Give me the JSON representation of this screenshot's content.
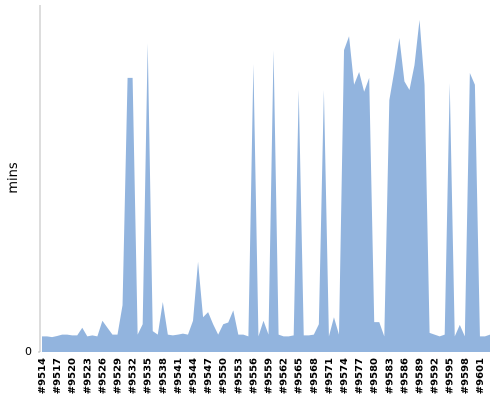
{
  "chart_data": {
    "type": "area",
    "ylabel": "mins",
    "color": "#92b4de",
    "ylim": [
      0,
      100
    ],
    "yticks": [
      0
    ],
    "categories": [
      "#9514",
      null,
      null,
      "#9517",
      null,
      null,
      "#9520",
      null,
      null,
      "#9523",
      null,
      null,
      "#9526",
      null,
      null,
      "#9529",
      null,
      null,
      "#9532",
      null,
      null,
      "#9535",
      null,
      null,
      "#9538",
      null,
      null,
      "#9541",
      null,
      null,
      "#9544",
      null,
      null,
      "#9547",
      null,
      null,
      "#9550",
      null,
      null,
      "#9553",
      null,
      null,
      "#9556",
      null,
      null,
      "#9559",
      null,
      null,
      "#9562",
      null,
      null,
      "#9565",
      null,
      null,
      "#9568",
      null,
      null,
      "#9571",
      null,
      null,
      "#9574",
      null,
      null,
      "#9577",
      null,
      null,
      "#9580",
      null,
      null,
      "#9583",
      null,
      null,
      "#9586",
      null,
      null,
      "#9589",
      null,
      null,
      "#9592",
      null,
      null,
      "#9595",
      null,
      null,
      "#9598",
      null,
      null,
      "#9601",
      null,
      null
    ],
    "values": [
      4.5,
      4.5,
      4.3,
      4.6,
      5,
      5,
      4.8,
      4.8,
      7,
      4.5,
      4.8,
      4.5,
      9,
      7,
      5,
      5,
      13.5,
      79,
      79,
      5,
      8,
      89,
      6,
      5,
      14.4,
      5,
      4.8,
      5,
      5.3,
      5,
      9,
      26,
      10,
      11.5,
      8,
      5,
      8,
      8.5,
      12,
      5,
      5,
      4.5,
      83,
      4.5,
      9,
      5,
      87,
      5,
      4.5,
      4.5,
      4.8,
      75.5,
      4.8,
      4.8,
      5,
      8,
      75.5,
      4.5,
      10,
      5,
      87,
      91,
      77,
      80.7,
      75,
      79,
      8.6,
      8.6,
      4.5,
      72.6,
      81,
      90.5,
      78,
      75.5,
      82.7,
      95.7,
      77,
      5.5,
      5,
      4.5,
      5,
      77.5,
      4.5,
      7.8,
      4.5,
      80.4,
      77,
      4.5,
      4.5,
      5
    ]
  }
}
